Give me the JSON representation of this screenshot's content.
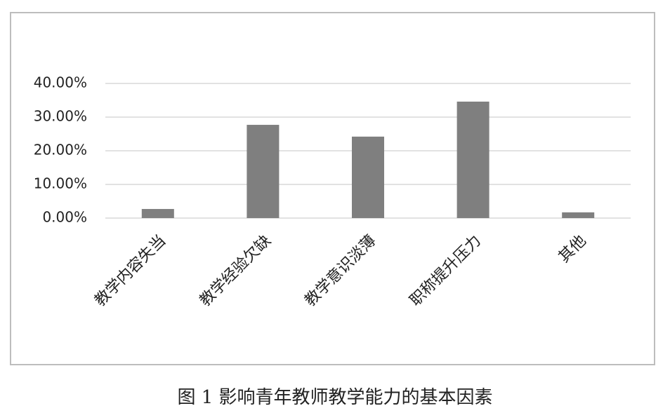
{
  "chart_data": {
    "type": "bar",
    "title": "图 1 影响青年教师教学能力的基本因素",
    "categories": [
      "教学内容失当",
      "教学经验欠缺",
      "教学意识淡薄",
      "职称提升压力",
      "其他"
    ],
    "values": [
      2.7,
      27.7,
      24.2,
      34.6,
      1.7
    ],
    "color": "#7f7f7f",
    "ylim": [
      0,
      40
    ],
    "yticks": [
      {
        "value": 0,
        "label": "0.00%"
      },
      {
        "value": 10,
        "label": "10.00%"
      },
      {
        "value": 20,
        "label": "20.00%"
      },
      {
        "value": 30,
        "label": "30.00%"
      },
      {
        "value": 40,
        "label": "40.00%"
      }
    ],
    "grid": true
  }
}
